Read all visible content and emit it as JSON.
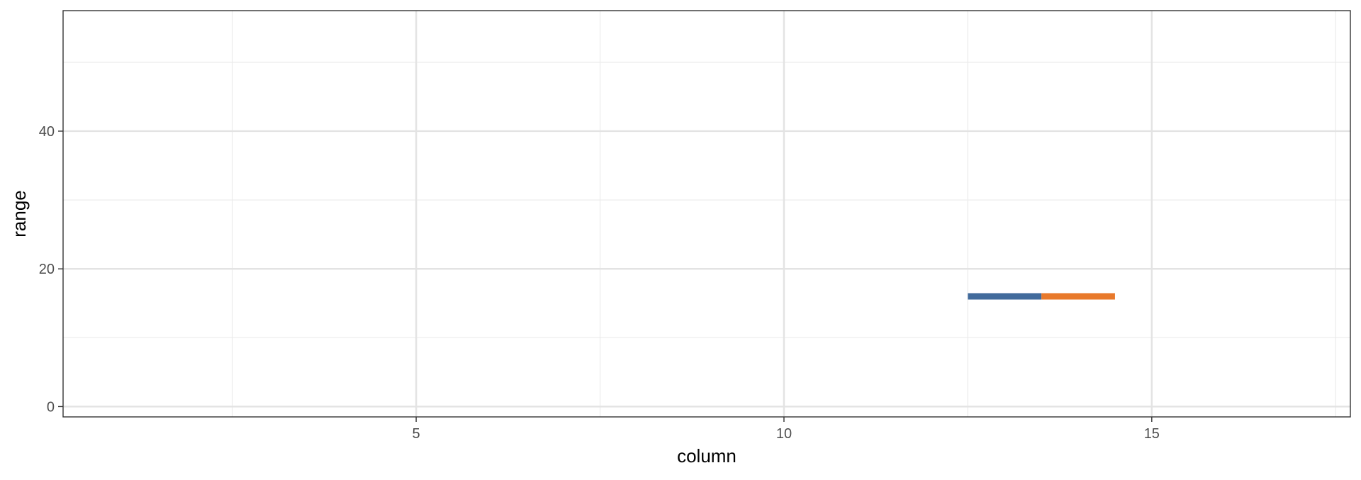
{
  "chart_data": {
    "type": "line",
    "title": "",
    "xlabel": "column",
    "ylabel": "range",
    "xlim": [
      0.2,
      17.7
    ],
    "ylim": [
      -1.5,
      57.5
    ],
    "x_ticks": [
      5,
      10,
      15
    ],
    "x_tick_labels": [
      "5",
      "10",
      "15"
    ],
    "x_minor_ticks": [
      2.5,
      7.5,
      12.5,
      17.5
    ],
    "y_ticks": [
      0,
      20,
      40
    ],
    "y_tick_labels": [
      "0",
      "20",
      "40"
    ],
    "y_minor_ticks": [
      10,
      30,
      50
    ],
    "grid": true,
    "legend": "none",
    "series": [
      {
        "color": "#416A9B",
        "segments": [
          {
            "x": [
              12.5,
              13.5
            ],
            "y": [
              16,
              16
            ]
          }
        ]
      },
      {
        "color": "#E8792B",
        "segments": [
          {
            "x": [
              13.5,
              14.5
            ],
            "y": [
              16,
              16
            ]
          }
        ]
      }
    ]
  }
}
